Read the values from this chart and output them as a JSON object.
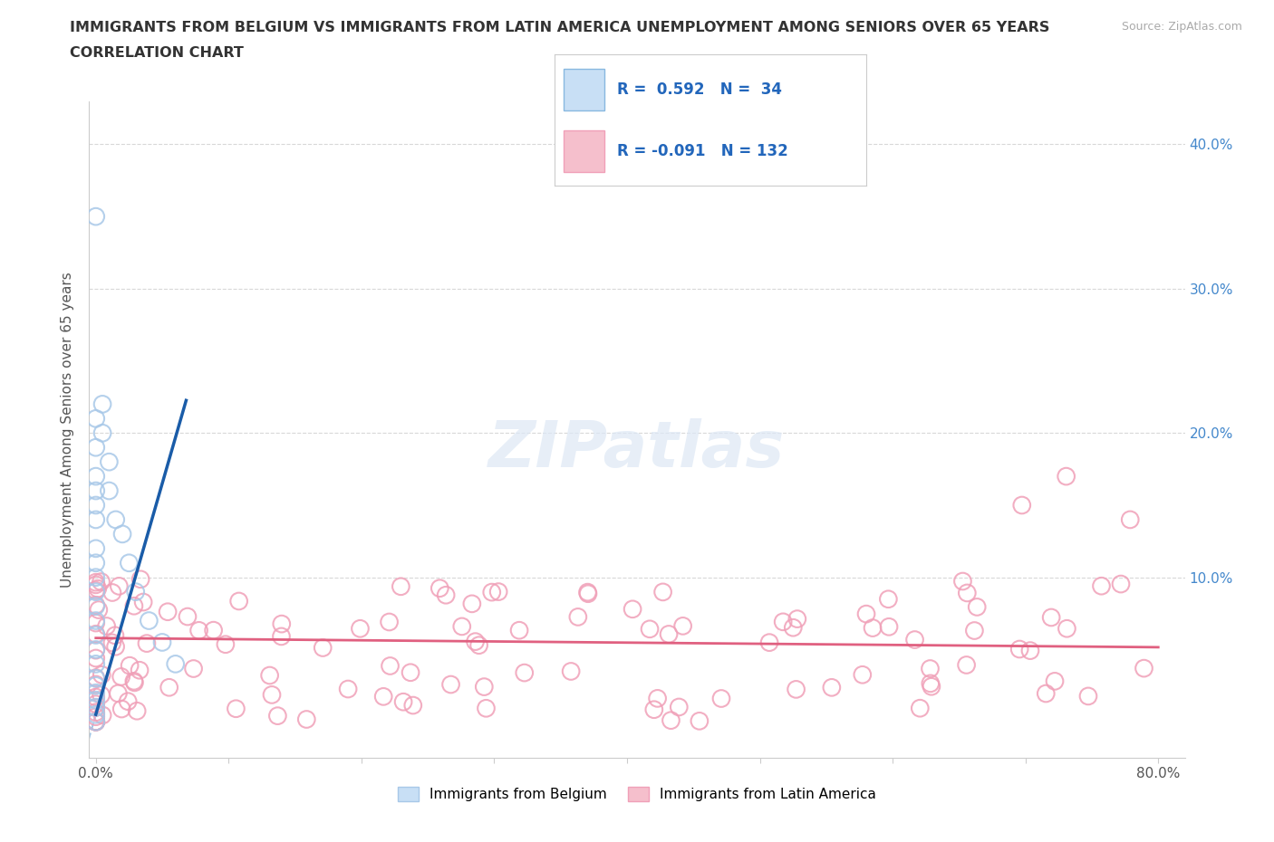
{
  "title_line1": "IMMIGRANTS FROM BELGIUM VS IMMIGRANTS FROM LATIN AMERICA UNEMPLOYMENT AMONG SENIORS OVER 65 YEARS",
  "title_line2": "CORRELATION CHART",
  "source_text": "Source: ZipAtlas.com",
  "ylabel": "Unemployment Among Seniors over 65 years",
  "xlim": [
    -0.005,
    0.82
  ],
  "ylim": [
    -0.025,
    0.43
  ],
  "x_tick_positions": [
    0.0,
    0.1,
    0.2,
    0.3,
    0.4,
    0.5,
    0.6,
    0.7,
    0.8
  ],
  "x_tick_labels": [
    "0.0%",
    "",
    "",
    "",
    "",
    "",
    "",
    "",
    "80.0%"
  ],
  "y_tick_positions": [
    0.0,
    0.1,
    0.2,
    0.3,
    0.4
  ],
  "y_tick_labels_right": [
    "",
    "10.0%",
    "20.0%",
    "30.0%",
    "40.0%"
  ],
  "belgium_R": 0.592,
  "belgium_N": 34,
  "latin_R": -0.091,
  "latin_N": 132,
  "belgium_scatter_color": "#a8c8e8",
  "latin_scatter_color": "#f0a0b8",
  "belgium_line_color": "#1a5ca8",
  "belgium_dash_color": "#88b8e0",
  "latin_line_color": "#e06080",
  "legend_bel_fill": "#c8dff5",
  "legend_bel_edge": "#88b8e0",
  "legend_lat_fill": "#f5bfcc",
  "legend_lat_edge": "#f0a0b8",
  "grid_color": "#d8d8d8",
  "spine_color": "#cccccc",
  "right_tick_color": "#4488cc",
  "watermark_color": "#dde8f5",
  "watermark_text": "ZIPatlas",
  "bel_slope": 3.2,
  "bel_intercept": 0.005,
  "lat_slope": -0.008,
  "lat_intercept": 0.058
}
